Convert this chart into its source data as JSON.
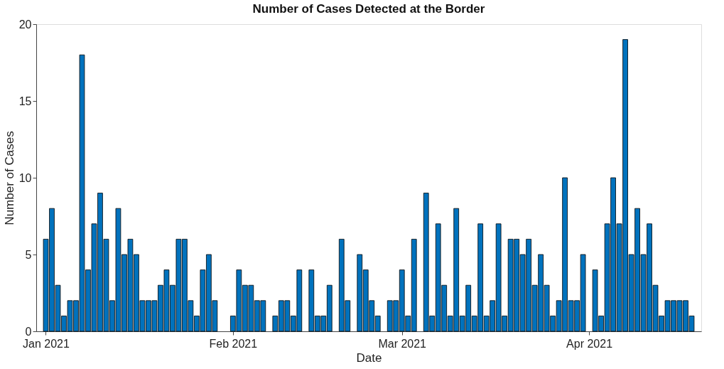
{
  "chart_data": {
    "type": "bar",
    "title": "Number of Cases Detected at the Border",
    "xlabel": "Date",
    "ylabel": "Number of Cases",
    "x": [
      "2021-01-01",
      "2021-01-02",
      "2021-01-03",
      "2021-01-04",
      "2021-01-05",
      "2021-01-06",
      "2021-01-07",
      "2021-01-08",
      "2021-01-09",
      "2021-01-10",
      "2021-01-11",
      "2021-01-12",
      "2021-01-13",
      "2021-01-14",
      "2021-01-15",
      "2021-01-16",
      "2021-01-17",
      "2021-01-18",
      "2021-01-19",
      "2021-01-20",
      "2021-01-21",
      "2021-01-22",
      "2021-01-23",
      "2021-01-24",
      "2021-01-25",
      "2021-01-26",
      "2021-01-27",
      "2021-01-28",
      "2021-01-29",
      "2021-01-30",
      "2021-01-31",
      "2021-02-01",
      "2021-02-02",
      "2021-02-03",
      "2021-02-04",
      "2021-02-05",
      "2021-02-06",
      "2021-02-07",
      "2021-02-08",
      "2021-02-09",
      "2021-02-10",
      "2021-02-11",
      "2021-02-12",
      "2021-02-13",
      "2021-02-14",
      "2021-02-15",
      "2021-02-16",
      "2021-02-17",
      "2021-02-18",
      "2021-02-19",
      "2021-02-20",
      "2021-02-21",
      "2021-02-22",
      "2021-02-23",
      "2021-02-24",
      "2021-02-25",
      "2021-02-26",
      "2021-02-27",
      "2021-02-28",
      "2021-03-01",
      "2021-03-02",
      "2021-03-03",
      "2021-03-04",
      "2021-03-05",
      "2021-03-06",
      "2021-03-07",
      "2021-03-08",
      "2021-03-09",
      "2021-03-10",
      "2021-03-11",
      "2021-03-12",
      "2021-03-13",
      "2021-03-14",
      "2021-03-15",
      "2021-03-16",
      "2021-03-17",
      "2021-03-18",
      "2021-03-19",
      "2021-03-20",
      "2021-03-21",
      "2021-03-22",
      "2021-03-23",
      "2021-03-24",
      "2021-03-25",
      "2021-03-26",
      "2021-03-27",
      "2021-03-28",
      "2021-03-29",
      "2021-03-30",
      "2021-03-31",
      "2021-04-01",
      "2021-04-02",
      "2021-04-03",
      "2021-04-04",
      "2021-04-05",
      "2021-04-06",
      "2021-04-07",
      "2021-04-08",
      "2021-04-09",
      "2021-04-10",
      "2021-04-11",
      "2021-04-12",
      "2021-04-13",
      "2021-04-14",
      "2021-04-15",
      "2021-04-16",
      "2021-04-17",
      "2021-04-18"
    ],
    "values": [
      6,
      8,
      3,
      1,
      2,
      2,
      18,
      4,
      7,
      9,
      6,
      2,
      8,
      5,
      6,
      5,
      2,
      2,
      2,
      3,
      4,
      3,
      6,
      6,
      2,
      1,
      4,
      5,
      2,
      0,
      0,
      1,
      4,
      3,
      3,
      2,
      2,
      0,
      1,
      2,
      2,
      1,
      4,
      0,
      4,
      1,
      1,
      3,
      0,
      6,
      2,
      0,
      5,
      4,
      2,
      1,
      0,
      2,
      2,
      4,
      1,
      6,
      0,
      9,
      1,
      7,
      3,
      1,
      8,
      1,
      3,
      1,
      7,
      1,
      2,
      7,
      1,
      6,
      6,
      5,
      6,
      3,
      5,
      3,
      1,
      2,
      10,
      2,
      2,
      5,
      0,
      4,
      1,
      7,
      10,
      7,
      19,
      5,
      8,
      5,
      7,
      3,
      1,
      2,
      2,
      2,
      2,
      1
    ],
    "color": "#0072bd",
    "xlim": [
      "2020-12-31",
      "2021-04-19"
    ],
    "xticks": [
      {
        "value": "2021-01-01",
        "label": "Jan 2021"
      },
      {
        "value": "2021-02-01",
        "label": "Feb 2021"
      },
      {
        "value": "2021-03-01",
        "label": "Mar 2021"
      },
      {
        "value": "2021-04-01",
        "label": "Apr 2021"
      }
    ],
    "ylim": [
      0,
      20
    ],
    "yticks": [
      0,
      5,
      10,
      15,
      20
    ],
    "grid": false
  }
}
